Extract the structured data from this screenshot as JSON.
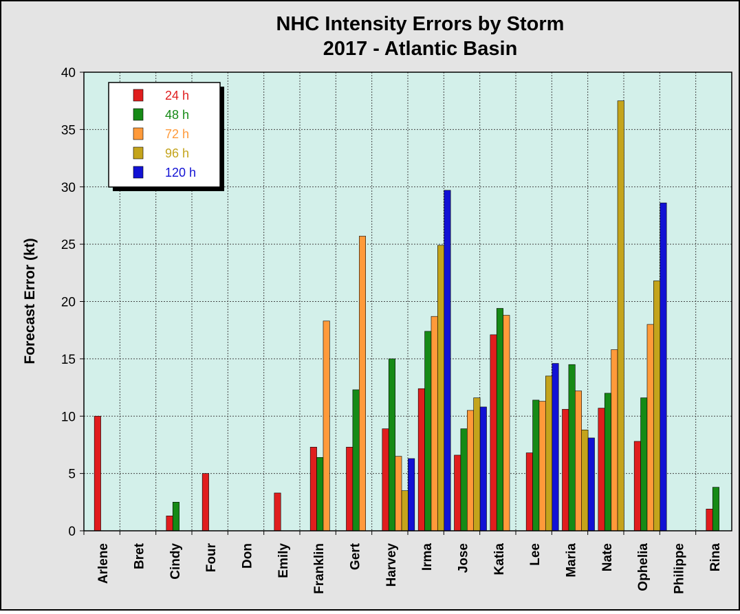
{
  "chart_data": {
    "type": "bar",
    "title": "NHC Intensity Errors by Storm",
    "subtitle": "2017 - Atlantic Basin",
    "y_label": "Forecast Error (kt)",
    "categories": [
      "Arlene",
      "Bret",
      "Cindy",
      "Four",
      "Don",
      "Emily",
      "Franklin",
      "Gert",
      "Harvey",
      "Irma",
      "Jose",
      "Katia",
      "Lee",
      "Maria",
      "Nate",
      "Ophelia",
      "Philippe",
      "Rina"
    ],
    "series": [
      {
        "name": "24 h",
        "color": "#e01e1e",
        "values": [
          10.0,
          null,
          1.3,
          5.0,
          null,
          3.3,
          7.3,
          7.3,
          8.9,
          12.4,
          6.6,
          17.1,
          6.8,
          10.6,
          10.7,
          7.8,
          null,
          1.9
        ]
      },
      {
        "name": "48 h",
        "color": "#168a16",
        "values": [
          null,
          null,
          2.5,
          null,
          null,
          null,
          6.4,
          12.3,
          15.0,
          17.4,
          8.9,
          19.4,
          11.4,
          14.5,
          12.0,
          11.6,
          null,
          3.8
        ]
      },
      {
        "name": "72 h",
        "color": "#ff9a3a",
        "values": [
          null,
          null,
          null,
          null,
          null,
          null,
          18.3,
          25.7,
          6.5,
          18.7,
          10.5,
          18.8,
          11.3,
          12.2,
          15.8,
          18.0,
          null,
          null
        ]
      },
      {
        "name": "96 h",
        "color": "#c4a41c",
        "values": [
          null,
          null,
          null,
          null,
          null,
          null,
          null,
          null,
          3.5,
          24.9,
          11.6,
          null,
          13.5,
          8.8,
          37.5,
          21.8,
          null,
          null
        ]
      },
      {
        "name": "120 h",
        "color": "#1212d4",
        "values": [
          null,
          null,
          null,
          null,
          null,
          null,
          null,
          null,
          6.3,
          29.7,
          10.8,
          null,
          14.6,
          8.1,
          null,
          28.6,
          null,
          null
        ]
      }
    ],
    "ylim": [
      0,
      40
    ],
    "yticks": [
      0,
      5,
      10,
      15,
      20,
      25,
      30,
      35,
      40
    ],
    "grid": true,
    "legend": "upper left"
  }
}
